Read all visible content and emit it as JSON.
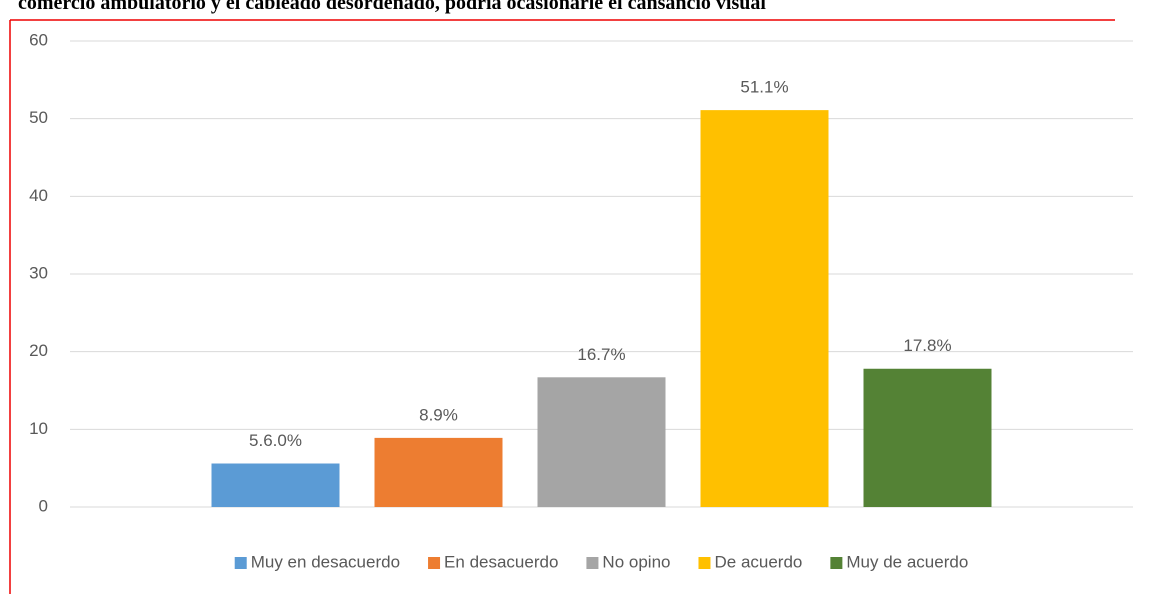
{
  "chart_data": {
    "type": "bar",
    "title": "comercio ambulatorio y el cableado desordenado, podría ocasionarle el cansancio visual",
    "categories": [
      null
    ],
    "series": [
      {
        "name": "Muy en desacuerdo",
        "color": "#5b9bd5",
        "values": [
          5.6
        ],
        "value_labels": [
          "5.6.0%"
        ]
      },
      {
        "name": "En desacuerdo",
        "color": "#ed7d31",
        "values": [
          8.9
        ],
        "value_labels": [
          "8.9%"
        ]
      },
      {
        "name": "No opino",
        "color": "#a5a5a5",
        "values": [
          16.7
        ],
        "value_labels": [
          "16.7%"
        ]
      },
      {
        "name": "De acuerdo",
        "color": "#ffc000",
        "values": [
          51.1
        ],
        "value_labels": [
          "51.1%"
        ]
      },
      {
        "name": "Muy de acuerdo",
        "color": "#548235",
        "values": [
          17.8
        ],
        "value_labels": [
          "17.8%"
        ]
      }
    ],
    "ylim": [
      0,
      60
    ],
    "yticks": [
      0,
      10,
      20,
      30,
      40,
      50,
      60
    ],
    "grid": true,
    "legend": "bottom"
  }
}
